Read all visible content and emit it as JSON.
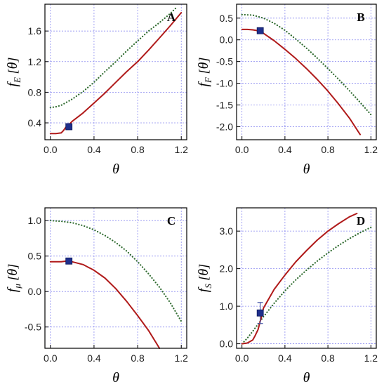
{
  "chart_data": [
    {
      "type": "line",
      "panel": "A",
      "ylabel": {
        "base": "f",
        "sub": "E",
        "arg": "θ"
      },
      "xlabel": "θ",
      "xlim": [
        -0.05,
        1.25
      ],
      "ylim": [
        0.18,
        1.95
      ],
      "xticks": [
        0.0,
        0.4,
        0.8,
        1.2
      ],
      "xtick_labels": [
        "0.0",
        "0.4",
        "0.8",
        "1.2"
      ],
      "yticks": [
        0.4,
        0.8,
        1.2,
        1.6
      ],
      "ytick_labels": [
        "0.4",
        "0.8",
        "1.2",
        "1.6"
      ],
      "grid": true,
      "series": [
        {
          "style": "dotted",
          "color": "#2f6b2f",
          "x": [
            0.0,
            0.05,
            0.1,
            0.2,
            0.3,
            0.4,
            0.5,
            0.6,
            0.7,
            0.8,
            0.9,
            1.0,
            1.1,
            1.15
          ],
          "y": [
            0.6,
            0.61,
            0.63,
            0.71,
            0.81,
            0.93,
            1.07,
            1.2,
            1.34,
            1.47,
            1.6,
            1.71,
            1.83,
            1.9
          ]
        },
        {
          "style": "solid",
          "color": "#b01a1a",
          "x": [
            0.0,
            0.05,
            0.1,
            0.12,
            0.14,
            0.18,
            0.2,
            0.3,
            0.4,
            0.5,
            0.6,
            0.7,
            0.8,
            0.9,
            1.0,
            1.1,
            1.2
          ],
          "y": [
            0.26,
            0.26,
            0.27,
            0.3,
            0.34,
            0.39,
            0.42,
            0.53,
            0.66,
            0.79,
            0.93,
            1.07,
            1.2,
            1.35,
            1.51,
            1.67,
            1.84
          ]
        }
      ],
      "markers": [
        {
          "x": 0.17,
          "y": 0.35,
          "err": 0,
          "color": "#1f2f8c"
        }
      ]
    },
    {
      "type": "line",
      "panel": "B",
      "ylabel": {
        "base": "f",
        "sub": "F",
        "arg": "θ"
      },
      "xlabel": "θ",
      "xlim": [
        -0.05,
        1.25
      ],
      "ylim": [
        -2.3,
        0.82
      ],
      "xticks": [
        0.0,
        0.4,
        0.8,
        1.2
      ],
      "xtick_labels": [
        "0.0",
        "0.4",
        "0.8",
        "1.2"
      ],
      "yticks": [
        -2.0,
        -1.5,
        -1.0,
        -0.5,
        0.0,
        0.5
      ],
      "ytick_labels": [
        "-2.0",
        "-1.5",
        "-1.0",
        "-0.5",
        "0.0",
        "0.5"
      ],
      "grid": true,
      "series": [
        {
          "style": "dotted",
          "color": "#2f6b2f",
          "x": [
            0.0,
            0.1,
            0.2,
            0.3,
            0.4,
            0.5,
            0.6,
            0.7,
            0.8,
            0.9,
            1.0,
            1.1,
            1.2
          ],
          "y": [
            0.58,
            0.57,
            0.5,
            0.38,
            0.22,
            0.02,
            -0.19,
            -0.42,
            -0.66,
            -0.91,
            -1.17,
            -1.44,
            -1.72
          ]
        },
        {
          "style": "solid",
          "color": "#b01a1a",
          "x": [
            0.0,
            0.05,
            0.1,
            0.15,
            0.2,
            0.3,
            0.4,
            0.5,
            0.6,
            0.7,
            0.8,
            0.9,
            1.0,
            1.1
          ],
          "y": [
            0.24,
            0.24,
            0.23,
            0.21,
            0.15,
            -0.02,
            -0.22,
            -0.43,
            -0.66,
            -0.91,
            -1.18,
            -1.48,
            -1.8,
            -2.18
          ]
        }
      ],
      "markers": [
        {
          "x": 0.17,
          "y": 0.21,
          "err": 0,
          "color": "#1f2f8c"
        }
      ]
    },
    {
      "type": "line",
      "panel": "C",
      "ylabel": {
        "base": "f",
        "sub": "μ",
        "arg": "θ"
      },
      "xlabel": "θ",
      "xlim": [
        -0.05,
        1.25
      ],
      "ylim": [
        -0.8,
        1.18
      ],
      "xticks": [
        0.0,
        0.4,
        0.8,
        1.2
      ],
      "xtick_labels": [
        "0.0",
        "0.4",
        "0.8",
        "1.2"
      ],
      "yticks": [
        -0.5,
        0.0,
        0.5,
        1.0
      ],
      "ytick_labels": [
        "-0.5",
        "0.0",
        "0.5",
        "1.0"
      ],
      "grid": true,
      "series": [
        {
          "style": "dotted",
          "color": "#2f6b2f",
          "x": [
            0.0,
            0.1,
            0.2,
            0.3,
            0.4,
            0.5,
            0.6,
            0.7,
            0.8,
            0.9,
            1.0,
            1.1,
            1.2
          ],
          "y": [
            1.0,
            0.99,
            0.97,
            0.93,
            0.87,
            0.79,
            0.69,
            0.57,
            0.42,
            0.25,
            0.06,
            -0.16,
            -0.42
          ]
        },
        {
          "style": "solid",
          "color": "#b01a1a",
          "x": [
            0.0,
            0.05,
            0.1,
            0.15,
            0.2,
            0.3,
            0.4,
            0.5,
            0.6,
            0.7,
            0.8,
            0.9,
            1.0
          ],
          "y": [
            0.42,
            0.42,
            0.42,
            0.43,
            0.42,
            0.38,
            0.3,
            0.19,
            0.04,
            -0.14,
            -0.34,
            -0.55,
            -0.8
          ]
        }
      ],
      "markers": [
        {
          "x": 0.17,
          "y": 0.43,
          "err": 0,
          "color": "#1f2f8c"
        }
      ]
    },
    {
      "type": "line",
      "panel": "D",
      "ylabel": {
        "base": "f",
        "sub": "S",
        "arg": "θ"
      },
      "xlabel": "θ",
      "xlim": [
        -0.05,
        1.25
      ],
      "ylim": [
        -0.12,
        3.62
      ],
      "xticks": [
        0.0,
        0.4,
        0.8,
        1.2
      ],
      "xtick_labels": [
        "0.0",
        "0.4",
        "0.8",
        "1.2"
      ],
      "yticks": [
        0.0,
        1.0,
        2.0,
        3.0
      ],
      "ytick_labels": [
        "0.0",
        "1.0",
        "2.0",
        "3.0"
      ],
      "grid": true,
      "series": [
        {
          "style": "dotted",
          "color": "#2f6b2f",
          "x": [
            0.0,
            0.05,
            0.1,
            0.2,
            0.3,
            0.4,
            0.5,
            0.6,
            0.7,
            0.8,
            0.9,
            1.0,
            1.1,
            1.2
          ],
          "y": [
            0.0,
            0.15,
            0.33,
            0.72,
            1.08,
            1.41,
            1.7,
            1.96,
            2.2,
            2.42,
            2.62,
            2.8,
            2.96,
            3.1
          ]
        },
        {
          "style": "solid",
          "color": "#b01a1a",
          "x": [
            0.0,
            0.05,
            0.1,
            0.12,
            0.15,
            0.18,
            0.2,
            0.3,
            0.4,
            0.5,
            0.6,
            0.7,
            0.8,
            0.9,
            1.0,
            1.07
          ],
          "y": [
            0.0,
            0.02,
            0.1,
            0.2,
            0.38,
            0.7,
            0.95,
            1.45,
            1.83,
            2.18,
            2.48,
            2.76,
            3.0,
            3.2,
            3.38,
            3.47
          ]
        }
      ],
      "markers": [
        {
          "x": 0.17,
          "y": 0.82,
          "err": 0.28,
          "color": "#1f2f8c"
        }
      ]
    }
  ]
}
